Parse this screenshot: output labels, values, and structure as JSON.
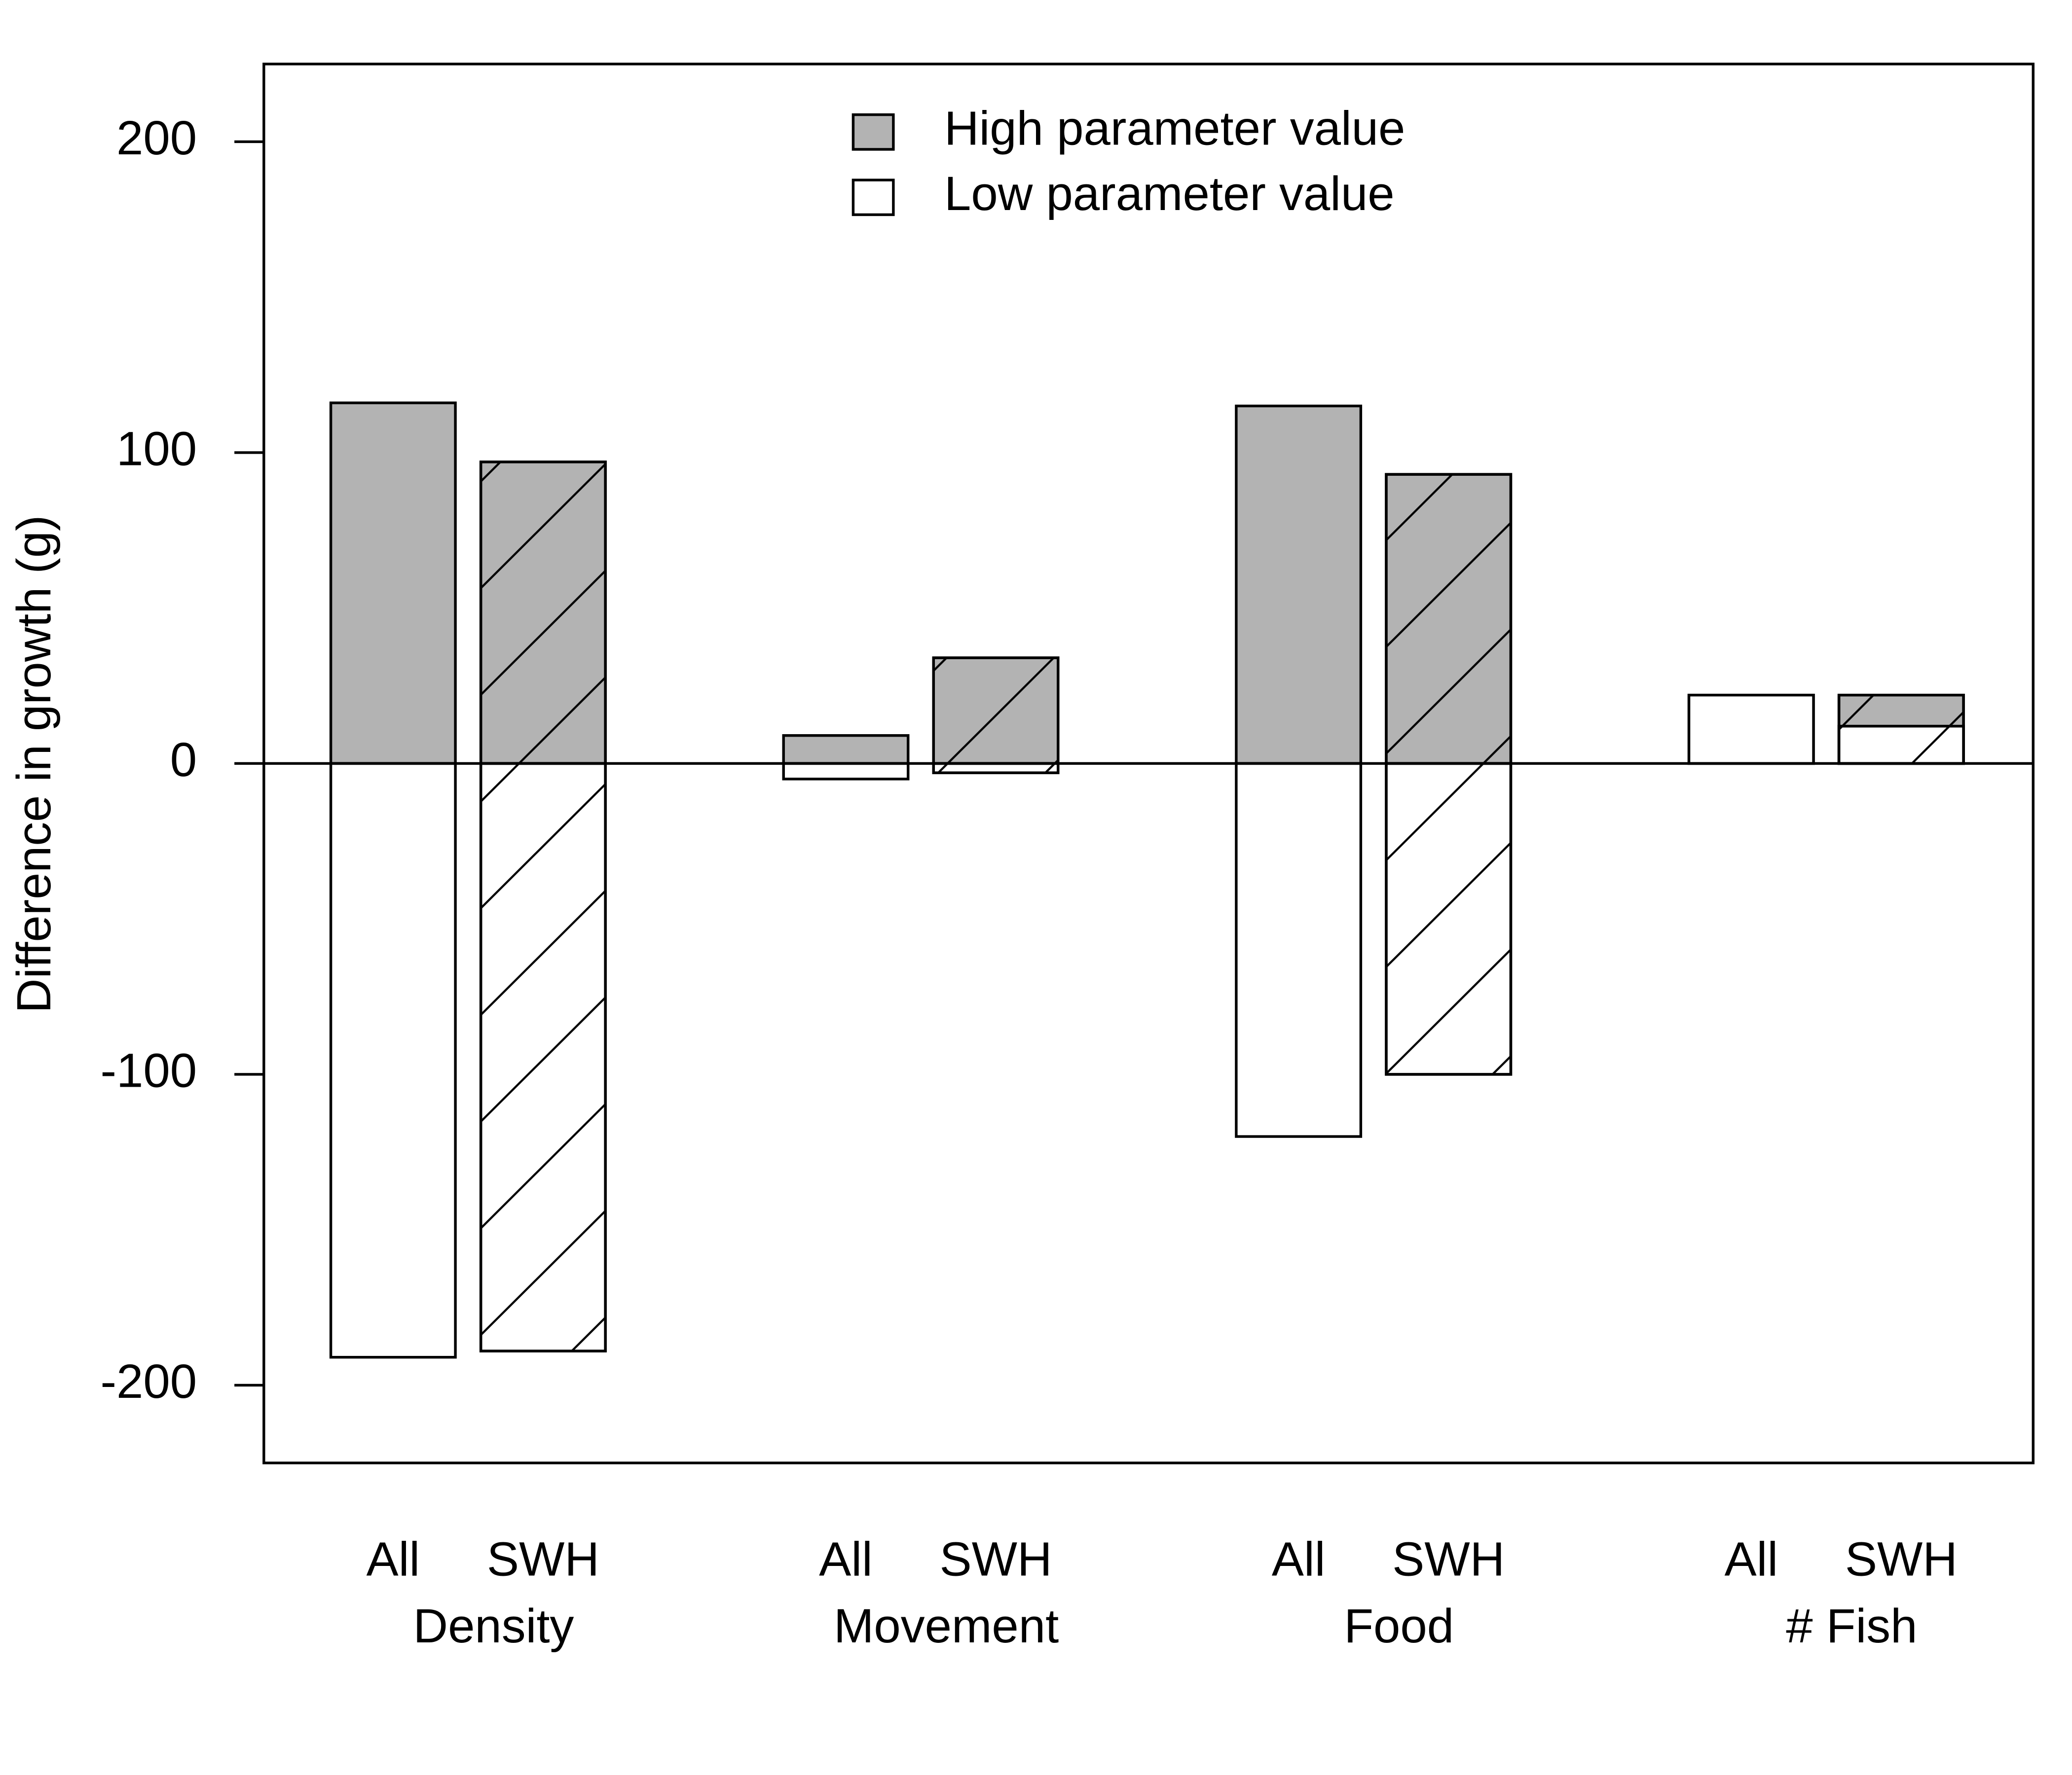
{
  "chart_data": {
    "type": "bar",
    "y_label": "Difference in growth (g)",
    "categories": [
      "All",
      "SWH",
      "All",
      "SWH",
      "All",
      "SWH",
      "All",
      "SWH"
    ],
    "groups": [
      "Density",
      "Movement",
      "Food",
      "# Fish"
    ],
    "series": [
      {
        "name": "High parameter value",
        "color": "#b3b3b3",
        "values": [
          116,
          97,
          9,
          34,
          115,
          93,
          22,
          22
        ]
      },
      {
        "name": "Low parameter value",
        "color": "#ffffff",
        "values": [
          -191,
          -189,
          -5,
          -3,
          -120,
          -100,
          22,
          12
        ]
      }
    ],
    "ylim": [
      -225,
      225
    ],
    "yticks": [
      -200,
      -100,
      0,
      100,
      200
    ]
  }
}
